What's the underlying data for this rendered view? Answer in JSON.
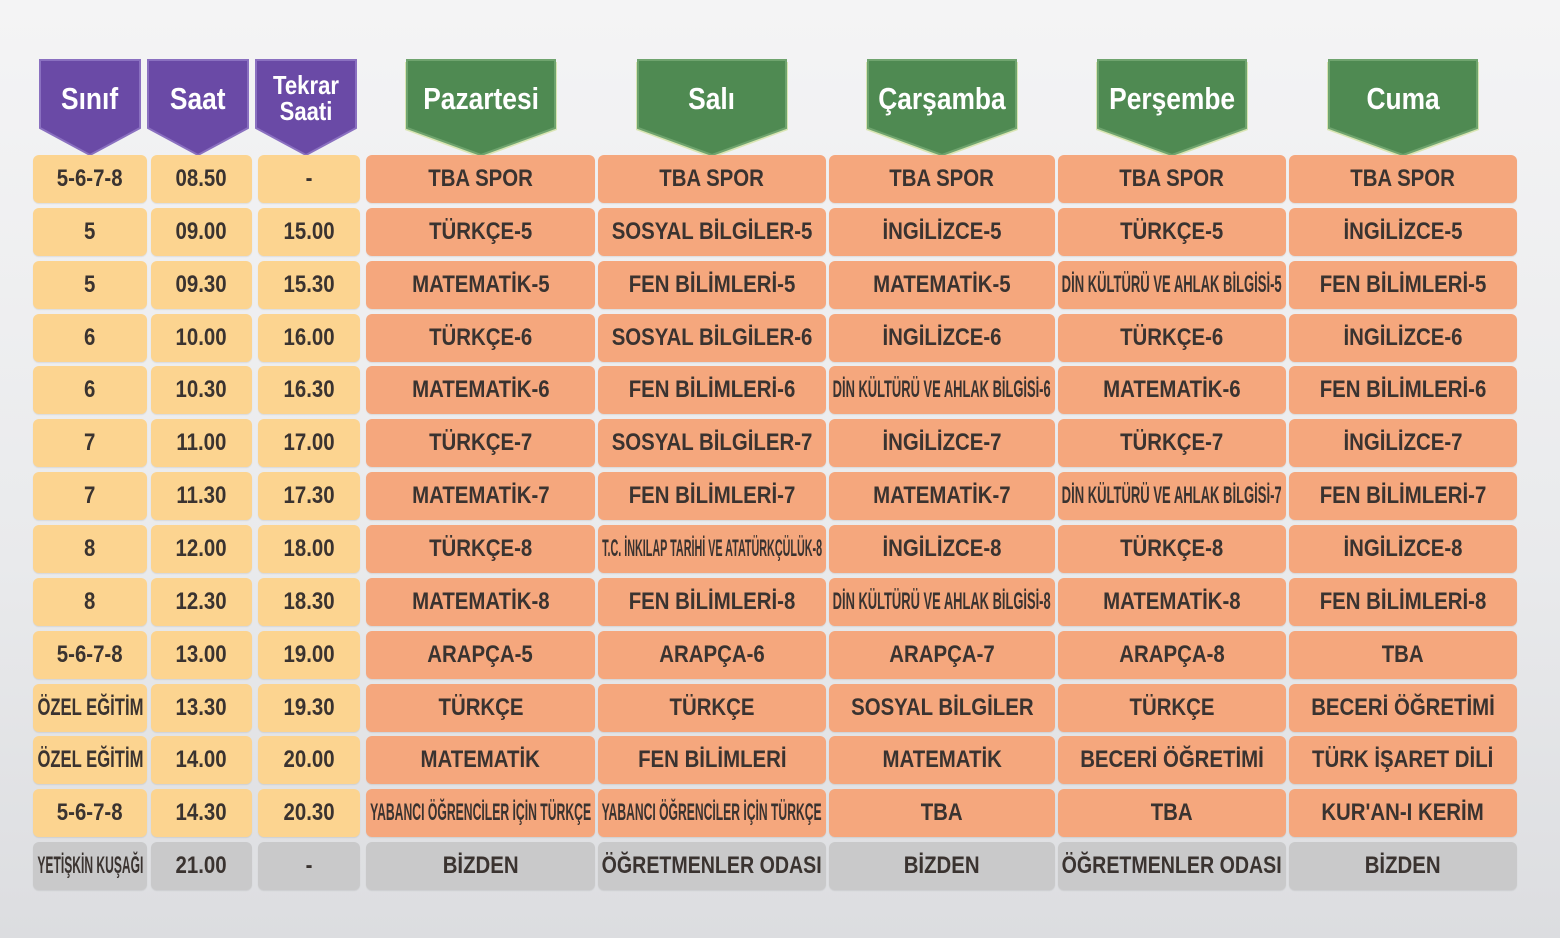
{
  "headers": [
    "Sınıf",
    "Saat",
    "Tekrar Saati",
    "Pazartesi",
    "Salı",
    "Çarşamba",
    "Perşembe",
    "Cuma"
  ],
  "rows": [
    [
      "5-6-7-8",
      "08.50",
      "-",
      "TBA SPOR",
      "TBA SPOR",
      "TBA SPOR",
      "TBA SPOR",
      "TBA SPOR"
    ],
    [
      "5",
      "09.00",
      "15.00",
      "TÜRKÇE-5",
      "SOSYAL BİLGİLER-5",
      "İNGİLİZCE-5",
      "TÜRKÇE-5",
      "İNGİLİZCE-5"
    ],
    [
      "5",
      "09.30",
      "15.30",
      "MATEMATİK-5",
      "FEN BİLİMLERİ-5",
      "MATEMATİK-5",
      "DİN KÜLTÜRÜ VE AHLAK BİLGİSİ-5",
      "FEN BİLİMLERİ-5"
    ],
    [
      "6",
      "10.00",
      "16.00",
      "TÜRKÇE-6",
      "SOSYAL BİLGİLER-6",
      "İNGİLİZCE-6",
      "TÜRKÇE-6",
      "İNGİLİZCE-6"
    ],
    [
      "6",
      "10.30",
      "16.30",
      "MATEMATİK-6",
      "FEN BİLİMLERİ-6",
      "DİN KÜLTÜRÜ VE AHLAK BİLGİSİ-6",
      "MATEMATİK-6",
      "FEN BİLİMLERİ-6"
    ],
    [
      "7",
      "11.00",
      "17.00",
      "TÜRKÇE-7",
      "SOSYAL BİLGİLER-7",
      "İNGİLİZCE-7",
      "TÜRKÇE-7",
      "İNGİLİZCE-7"
    ],
    [
      "7",
      "11.30",
      "17.30",
      "MATEMATİK-7",
      "FEN BİLİMLERİ-7",
      "MATEMATİK-7",
      "DİN KÜLTÜRÜ VE AHLAK BİLGİSİ-7",
      "FEN BİLİMLERİ-7"
    ],
    [
      "8",
      "12.00",
      "18.00",
      "TÜRKÇE-8",
      "T.C. İNKILAP TARİHİ VE ATATÜRKÇÜLÜK-8",
      "İNGİLİZCE-8",
      "TÜRKÇE-8",
      "İNGİLİZCE-8"
    ],
    [
      "8",
      "12.30",
      "18.30",
      "MATEMATİK-8",
      "FEN BİLİMLERİ-8",
      "DİN KÜLTÜRÜ VE AHLAK BİLGİSİ-8",
      "MATEMATİK-8",
      "FEN BİLİMLERİ-8"
    ],
    [
      "5-6-7-8",
      "13.00",
      "19.00",
      "ARAPÇA-5",
      "ARAPÇA-6",
      "ARAPÇA-7",
      "ARAPÇA-8",
      "TBA"
    ],
    [
      "ÖZEL EĞİTİM",
      "13.30",
      "19.30",
      "TÜRKÇE",
      "TÜRKÇE",
      "SOSYAL BİLGİLER",
      "TÜRKÇE",
      "BECERİ ÖĞRETİMİ"
    ],
    [
      "ÖZEL EĞİTİM",
      "14.00",
      "20.00",
      "MATEMATİK",
      "FEN BİLİMLERİ",
      "MATEMATİK",
      "BECERİ ÖĞRETİMİ",
      "TÜRK İŞARET DİLİ"
    ],
    [
      "5-6-7-8",
      "14.30",
      "20.30",
      "YABANCI ÖĞRENCİLER İÇİN TÜRKÇE",
      "YABANCI ÖĞRENCİLER İÇİN TÜRKÇE",
      "TBA",
      "TBA",
      "KUR'AN-I KERİM"
    ],
    [
      "YETİŞKİN KUŞAĞI",
      "21.00",
      "-",
      "BİZDEN",
      "ÖĞRETMENLER ODASI",
      "BİZDEN",
      "ÖĞRETMENLER ODASI",
      "BİZDEN"
    ]
  ]
}
